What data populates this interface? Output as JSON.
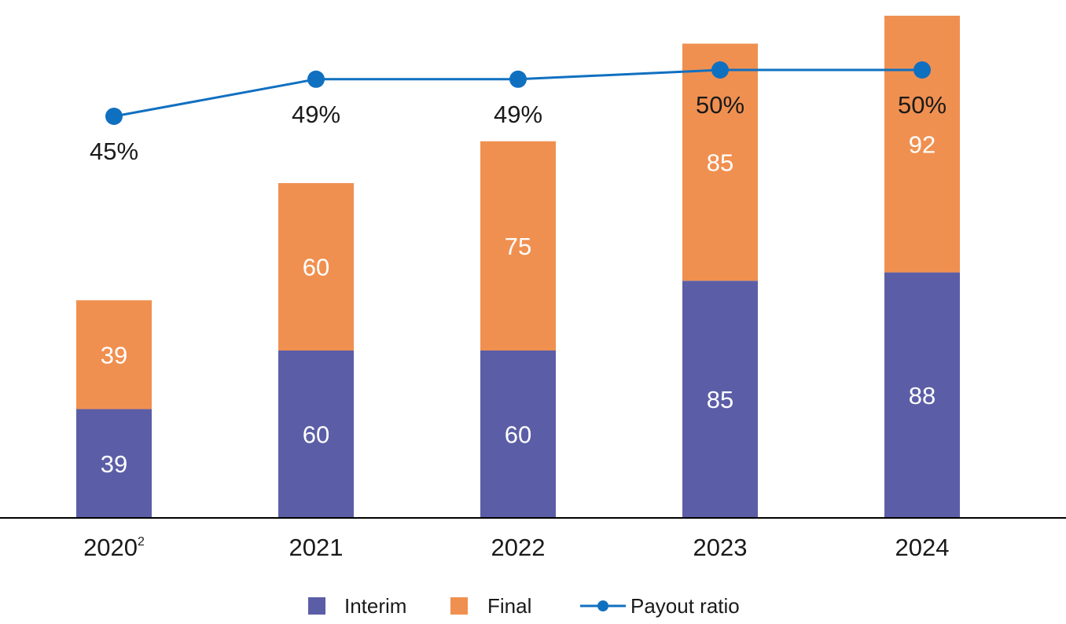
{
  "chart_data": {
    "type": "bar",
    "stacked": true,
    "categories": [
      "2020",
      "2021",
      "2022",
      "2023",
      "2024"
    ],
    "category_superscripts": [
      "2",
      "",
      "",
      "",
      ""
    ],
    "series": [
      {
        "name": "Interim",
        "values": [
          39,
          60,
          60,
          85,
          88
        ],
        "color": "#5b5ea6"
      },
      {
        "name": "Final",
        "values": [
          39,
          60,
          75,
          85,
          92
        ],
        "color": "#f09050"
      }
    ],
    "line_series": {
      "name": "Payout ratio",
      "values": [
        45,
        49,
        49,
        50,
        50
      ],
      "labels": [
        "45%",
        "49%",
        "49%",
        "50%",
        "50%"
      ],
      "color": "#1070c0"
    },
    "title": "",
    "xlabel": "",
    "ylabel": "",
    "ylim": [
      0,
      180
    ],
    "grid": false,
    "legend": "bottom"
  }
}
